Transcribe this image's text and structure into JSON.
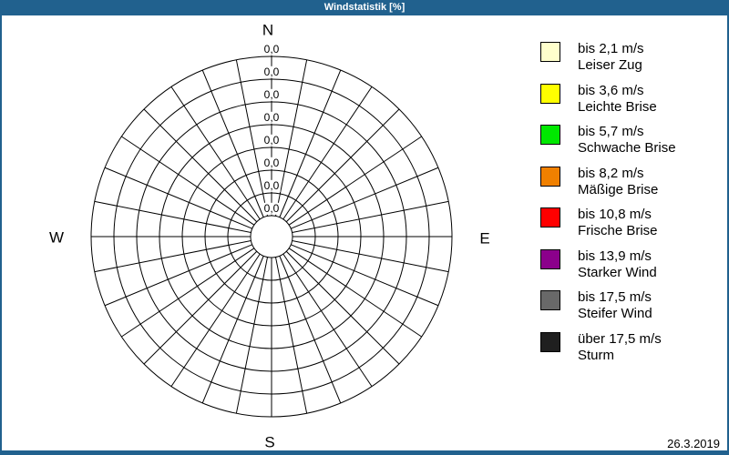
{
  "window": {
    "title": "Windstatistik [%]",
    "chrome_color": "#21618E",
    "date": "26.3.2019"
  },
  "compass": {
    "north": "N",
    "east": "E",
    "south": "S",
    "west": "W"
  },
  "chart_data": {
    "type": "polar",
    "subtype": "wind-rose-frequency-grid",
    "title": "Windstatistik [%]",
    "unit": "%",
    "sectors": 32,
    "sector_angle_deg": 11.25,
    "rings": 8,
    "ring_value_labels": [
      "0,0",
      "0,0",
      "0,0",
      "0,0",
      "0,0",
      "0,0",
      "0,0",
      "0,0"
    ],
    "frequency_percent_all_directions": 0,
    "compass_points": [
      "N",
      "E",
      "S",
      "W"
    ],
    "grid_color": "#000000",
    "legend_position": "right"
  },
  "legend": {
    "entries": [
      {
        "color": "#FFFFCC",
        "speed_label": "bis 2,1 m/s",
        "class_label": "Leiser Zug"
      },
      {
        "color": "#FFFF00",
        "speed_label": "bis 3,6 m/s",
        "class_label": "Leichte Brise"
      },
      {
        "color": "#00E800",
        "speed_label": "bis 5,7 m/s",
        "class_label": "Schwache Brise"
      },
      {
        "color": "#F08000",
        "speed_label": "bis 8,2 m/s",
        "class_label": "Mäßige Brise"
      },
      {
        "color": "#FF0000",
        "speed_label": "bis 10,8 m/s",
        "class_label": "Frische Brise"
      },
      {
        "color": "#8B008B",
        "speed_label": "bis 13,9 m/s",
        "class_label": "Starker Wind"
      },
      {
        "color": "#696969",
        "speed_label": "bis 17,5 m/s",
        "class_label": "Steifer Wind"
      },
      {
        "color": "#1F1F1F",
        "speed_label": "über 17,5 m/s",
        "class_label": "Sturm",
        "pattern": "dots"
      }
    ]
  }
}
